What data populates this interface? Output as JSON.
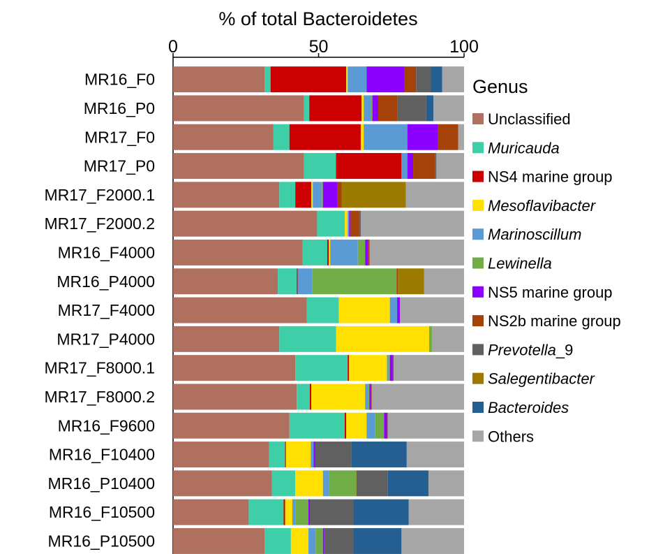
{
  "chart_data": {
    "type": "bar",
    "orientation": "horizontal",
    "stacked": true,
    "title": "% of total Bacteroidetes",
    "xlim": [
      0,
      100
    ],
    "xticks": [
      0,
      50,
      100
    ],
    "legend_title": "Genus",
    "legend_position": "right",
    "categories": [
      "MR16_F0",
      "MR16_P0",
      "MR17_F0",
      "MR17_P0",
      "MR17_F2000.1",
      "MR17_F2000.2",
      "MR16_F4000",
      "MR16_P4000",
      "MR17_F4000",
      "MR17_P4000",
      "MR17_F8000.1",
      "MR17_F8000.2",
      "MR16_F9600",
      "MR16_F10400",
      "MR16_P10400",
      "MR16_F10500",
      "MR16_P10500"
    ],
    "series": [
      {
        "name": "Unclassified",
        "italic": false,
        "color": "#b07060",
        "values": [
          31.5,
          45.0,
          34.5,
          45.0,
          36.5,
          49.5,
          44.5,
          36.0,
          46.0,
          36.5,
          42.0,
          42.5,
          40.0,
          33.0,
          34.0,
          26.0,
          31.5
        ]
      },
      {
        "name": "Muricauda",
        "italic": true,
        "color": "#3fcfa8",
        "values": [
          2.0,
          1.8,
          5.5,
          11.0,
          5.5,
          9.5,
          8.5,
          6.5,
          11.0,
          19.5,
          18.0,
          4.5,
          19.0,
          5.5,
          8.0,
          12.0,
          9.0
        ]
      },
      {
        "name": "NS4 marine group",
        "italic": false,
        "color": "#cc0000",
        "values": [
          26.0,
          18.0,
          24.5,
          22.5,
          5.5,
          0.0,
          0.5,
          0.3,
          0.0,
          0.0,
          0.5,
          0.5,
          0.5,
          0.3,
          0.0,
          0.5,
          0.0
        ]
      },
      {
        "name": "Mesoflavibacter",
        "italic": true,
        "color": "#ffe000",
        "values": [
          0.5,
          0.7,
          1.0,
          0.0,
          0.5,
          1.0,
          0.5,
          0.0,
          17.5,
          32.0,
          13.0,
          18.5,
          7.0,
          8.5,
          9.5,
          2.5,
          6.0
        ]
      },
      {
        "name": "Marinoscillum",
        "italic": true,
        "color": "#5b9bd5",
        "values": [
          6.5,
          2.5,
          15.0,
          2.0,
          3.0,
          0.5,
          9.5,
          5.0,
          2.5,
          0.0,
          0.5,
          1.0,
          3.0,
          1.0,
          2.0,
          1.0,
          2.5
        ]
      },
      {
        "name": "Lewinella",
        "italic": true,
        "color": "#70ad47",
        "values": [
          0.0,
          0.5,
          0.0,
          0.0,
          0.5,
          0.0,
          2.5,
          29.0,
          0.0,
          1.0,
          0.5,
          0.5,
          3.0,
          0.0,
          9.5,
          4.5,
          2.5
        ]
      },
      {
        "name": "NS5 marine group",
        "italic": false,
        "color": "#8b00ff",
        "values": [
          13.0,
          2.0,
          10.5,
          2.0,
          5.0,
          0.5,
          1.0,
          0.0,
          1.0,
          0.0,
          1.0,
          0.5,
          1.0,
          0.5,
          0.0,
          0.5,
          0.5
        ]
      },
      {
        "name": "NS2b marine group",
        "italic": false,
        "color": "#a5420a",
        "values": [
          4.0,
          6.5,
          7.0,
          7.5,
          1.5,
          3.0,
          0.5,
          0.5,
          0.0,
          0.0,
          0.3,
          0.3,
          0.3,
          0.0,
          0.3,
          0.0,
          0.0
        ]
      },
      {
        "name": "Prevotella_9",
        "italic": true,
        "italic_part": "Prevotella",
        "color": "#606060",
        "values": [
          5.0,
          10.0,
          0.0,
          0.5,
          0.0,
          0.5,
          0.0,
          0.0,
          0.0,
          0.0,
          0.0,
          0.0,
          0.0,
          12.5,
          10.5,
          15.0,
          10.0
        ]
      },
      {
        "name": "Salegentibacter",
        "italic": true,
        "color": "#9c7a00",
        "values": [
          0.0,
          0.0,
          0.0,
          0.0,
          22.0,
          0.0,
          0.0,
          9.0,
          0.0,
          0.0,
          0.0,
          0.0,
          0.0,
          0.0,
          0.0,
          0.0,
          0.0
        ]
      },
      {
        "name": "Bacteroides",
        "italic": true,
        "color": "#255e91",
        "values": [
          4.0,
          2.5,
          0.0,
          0.0,
          0.0,
          0.0,
          0.0,
          0.0,
          0.0,
          0.0,
          0.0,
          0.0,
          0.0,
          19.0,
          14.0,
          19.0,
          16.5
        ]
      },
      {
        "name": "Others",
        "italic": false,
        "color": "#a6a6a6",
        "values": [
          8.5,
          10.5,
          2.0,
          9.5,
          20.0,
          35.5,
          32.5,
          14.0,
          22.0,
          11.0,
          24.2,
          31.7,
          26.2,
          20.2,
          12.7,
          19.5,
          21.5
        ]
      }
    ]
  }
}
